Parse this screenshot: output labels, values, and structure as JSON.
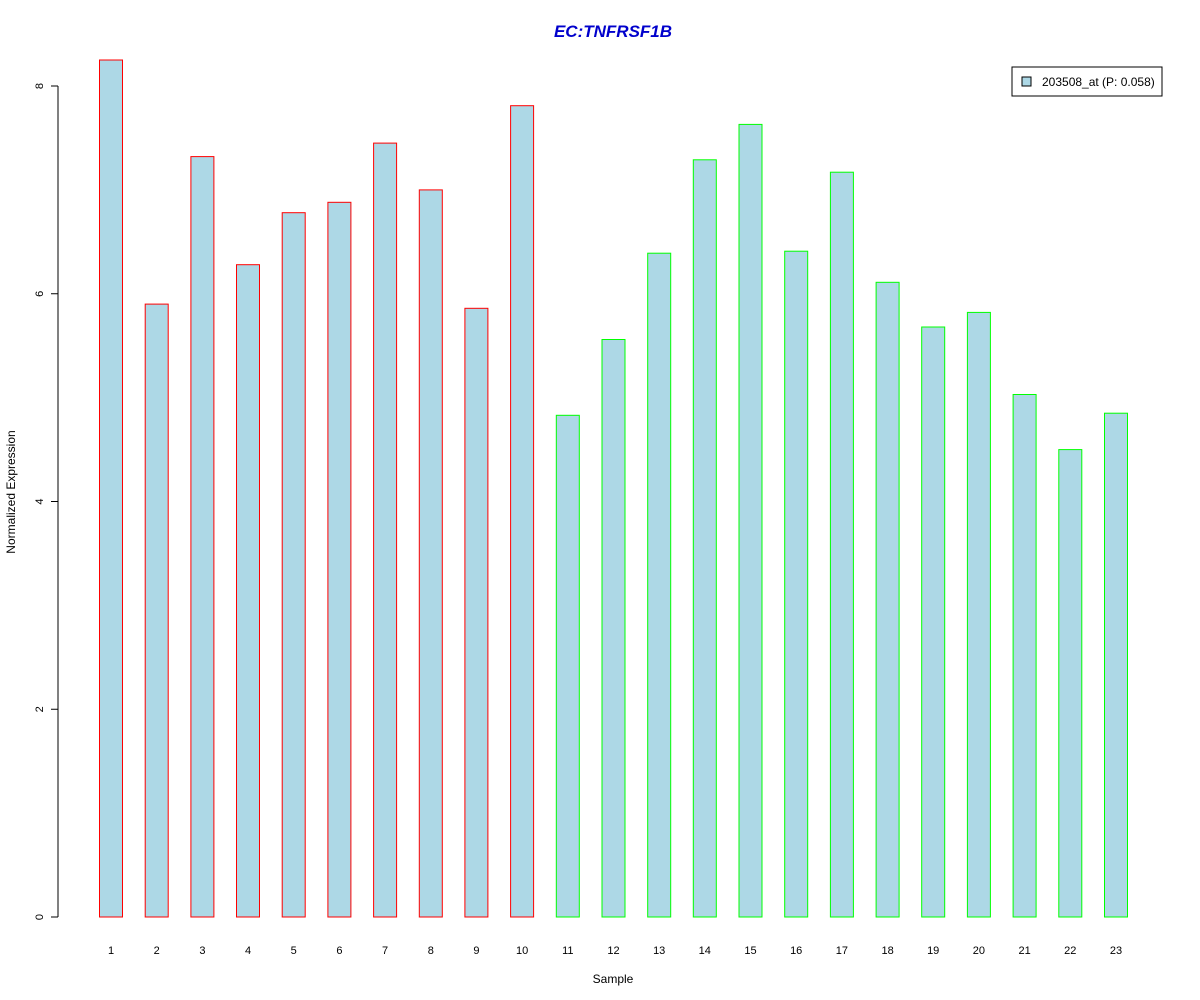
{
  "chart_data": {
    "type": "bar",
    "title": "EC:TNFRSF1B",
    "xlabel": "Sample",
    "ylabel": "Normalized Expression",
    "categories": [
      "1",
      "2",
      "3",
      "4",
      "5",
      "6",
      "7",
      "8",
      "9",
      "10",
      "11",
      "12",
      "13",
      "14",
      "15",
      "16",
      "17",
      "18",
      "19",
      "20",
      "21",
      "22",
      "23"
    ],
    "series": [
      {
        "name": "203508_at (P: 0.058)",
        "values": [
          8.25,
          5.9,
          7.32,
          6.28,
          6.78,
          6.88,
          7.45,
          7.0,
          5.86,
          7.81,
          4.83,
          5.56,
          6.39,
          7.29,
          7.63,
          6.41,
          7.17,
          6.11,
          5.68,
          5.82,
          5.03,
          4.5,
          4.85
        ],
        "fill": "#ADD8E6",
        "border_colors": [
          "#FF0000",
          "#FF0000",
          "#FF0000",
          "#FF0000",
          "#FF0000",
          "#FF0000",
          "#FF0000",
          "#FF0000",
          "#FF0000",
          "#FF0000",
          "#00FF00",
          "#00FF00",
          "#00FF00",
          "#00FF00",
          "#00FF00",
          "#00FF00",
          "#00FF00",
          "#00FF00",
          "#00FF00",
          "#00FF00",
          "#00FF00",
          "#00FF00",
          "#00FF00"
        ]
      }
    ],
    "yticks": [
      "0",
      "2",
      "4",
      "6",
      "8"
    ],
    "ylim": [
      0,
      8
    ],
    "grid": false,
    "legend": "top-right",
    "title_color": "#0000CC"
  }
}
